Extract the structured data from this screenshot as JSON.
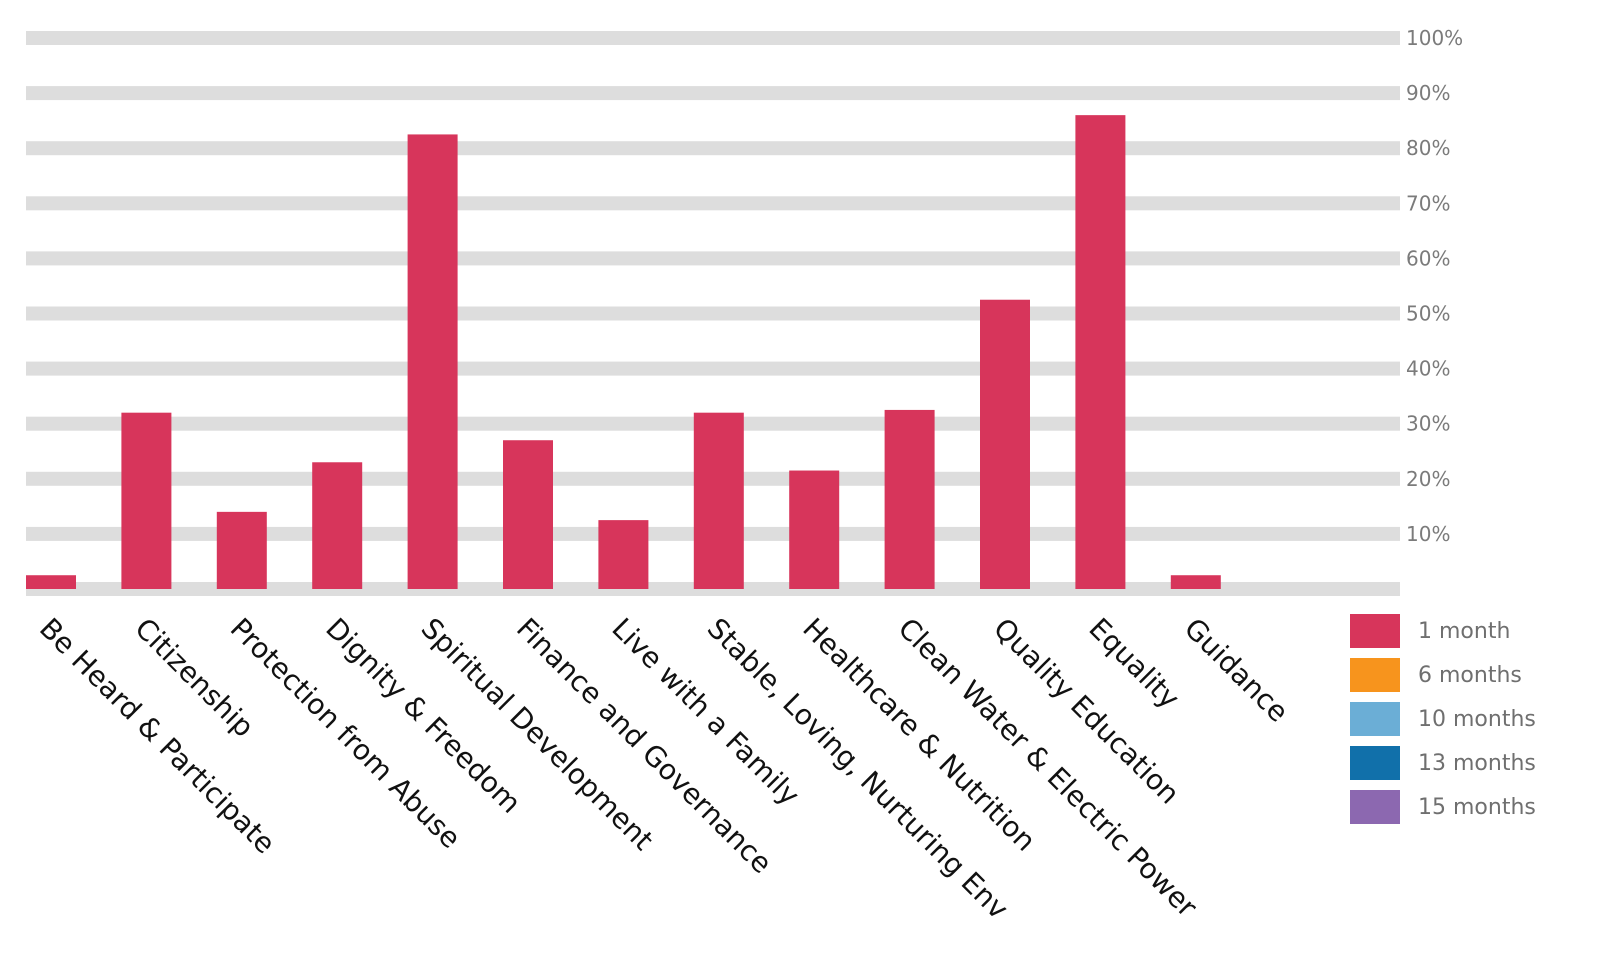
{
  "chart_data": {
    "type": "bar",
    "categories": [
      "Be Heard & Participate",
      "Citizenship",
      "Protection from Abuse",
      "Dignity & Freedom",
      "Spiritual Development",
      "Finance and Governance",
      "Live with a Family",
      "Stable, Loving, Nurturing Env",
      "Healthcare & Nutrition",
      "Clean Water & Electric Power",
      "Quality Education",
      "Equality",
      "Guidance"
    ],
    "series": [
      {
        "name": "1 month",
        "color": "#d7355b",
        "values": [
          2.5,
          32,
          14,
          23,
          82.5,
          27,
          12.5,
          32,
          21.5,
          32.5,
          52.5,
          86,
          2.5
        ]
      },
      {
        "name": "6 months",
        "color": "#f7941d",
        "values": [
          null,
          null,
          null,
          null,
          null,
          null,
          null,
          null,
          null,
          null,
          null,
          null,
          null
        ]
      },
      {
        "name": "10 months",
        "color": "#6baed6",
        "values": [
          null,
          null,
          null,
          null,
          null,
          null,
          null,
          null,
          null,
          null,
          null,
          null,
          null
        ]
      },
      {
        "name": "13 months",
        "color": "#1170aa",
        "values": [
          null,
          null,
          null,
          null,
          null,
          null,
          null,
          null,
          null,
          null,
          null,
          null,
          null
        ]
      },
      {
        "name": "15 months",
        "color": "#8c68b0",
        "values": [
          null,
          null,
          null,
          null,
          null,
          null,
          null,
          null,
          null,
          null,
          null,
          null,
          null
        ]
      }
    ],
    "y_ticks": [
      "10%",
      "20%",
      "30%",
      "40%",
      "50%",
      "60%",
      "70%",
      "80%",
      "90%",
      "100%"
    ],
    "ylim": [
      0,
      100
    ],
    "grid": true,
    "legend_position": "bottom-right",
    "title": "",
    "xlabel": "",
    "ylabel": ""
  }
}
